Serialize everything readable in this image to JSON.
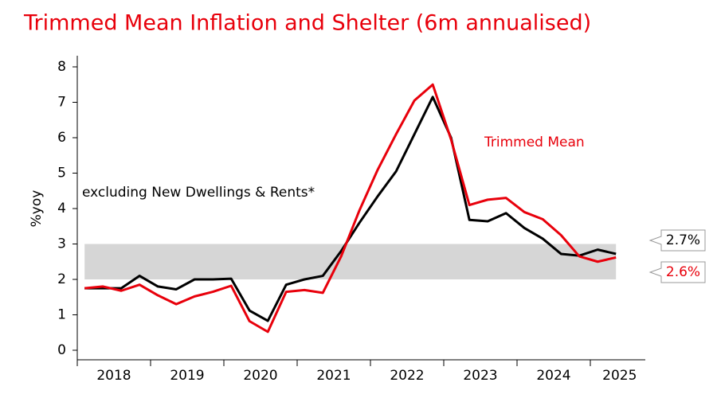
{
  "chart_data": {
    "type": "line",
    "title": "Trimmed Mean Inflation and Shelter (6m annualised)",
    "ylabel": "%yoy",
    "x": [
      2018.1,
      2018.35,
      2018.6,
      2018.85,
      2019.1,
      2019.35,
      2019.6,
      2019.85,
      2020.1,
      2020.35,
      2020.6,
      2020.85,
      2021.1,
      2021.35,
      2021.6,
      2021.85,
      2022.1,
      2022.35,
      2022.6,
      2022.85,
      2023.1,
      2023.35,
      2023.6,
      2023.85,
      2024.1,
      2024.35,
      2024.6,
      2024.85,
      2025.1,
      2025.35
    ],
    "series": [
      {
        "name": "excluding New Dwellings & Rents*",
        "color": "#000000",
        "values": [
          1.75,
          1.75,
          1.75,
          2.1,
          1.8,
          1.72,
          2.0,
          2.0,
          2.02,
          1.12,
          0.83,
          1.85,
          2.0,
          2.1,
          2.8,
          3.6,
          4.35,
          5.05,
          6.1,
          7.15,
          6.0,
          3.68,
          3.64,
          3.87,
          3.45,
          3.15,
          2.72,
          2.67,
          2.84,
          2.72
        ],
        "end_label": "2.7%"
      },
      {
        "name": "Trimmed Mean",
        "color": "#e8000b",
        "values": [
          1.75,
          1.8,
          1.68,
          1.85,
          1.55,
          1.3,
          1.52,
          1.65,
          1.82,
          0.82,
          0.52,
          1.65,
          1.7,
          1.62,
          2.65,
          3.95,
          5.1,
          6.1,
          7.05,
          7.5,
          5.95,
          4.1,
          4.25,
          4.3,
          3.9,
          3.7,
          3.25,
          2.65,
          2.5,
          2.62
        ],
        "end_label": "2.6%"
      }
    ],
    "target_band": [
      2,
      3
    ],
    "ylim": [
      0,
      8
    ],
    "yticks": [
      0,
      1,
      2,
      3,
      4,
      5,
      6,
      7,
      8
    ],
    "xlim": [
      2018,
      2025.75
    ],
    "xticks": [
      {
        "value": 2018.5,
        "label": "2018"
      },
      {
        "value": 2019.5,
        "label": "2019"
      },
      {
        "value": 2020.5,
        "label": "2020"
      },
      {
        "value": 2021.5,
        "label": "2021"
      },
      {
        "value": 2022.5,
        "label": "2022"
      },
      {
        "value": 2023.5,
        "label": "2023"
      },
      {
        "value": 2024.5,
        "label": "2024"
      },
      {
        "value": 2025.4,
        "label": "2025"
      }
    ],
    "xminor": [
      2018,
      2019,
      2020,
      2021,
      2022,
      2023,
      2024,
      2025
    ]
  }
}
